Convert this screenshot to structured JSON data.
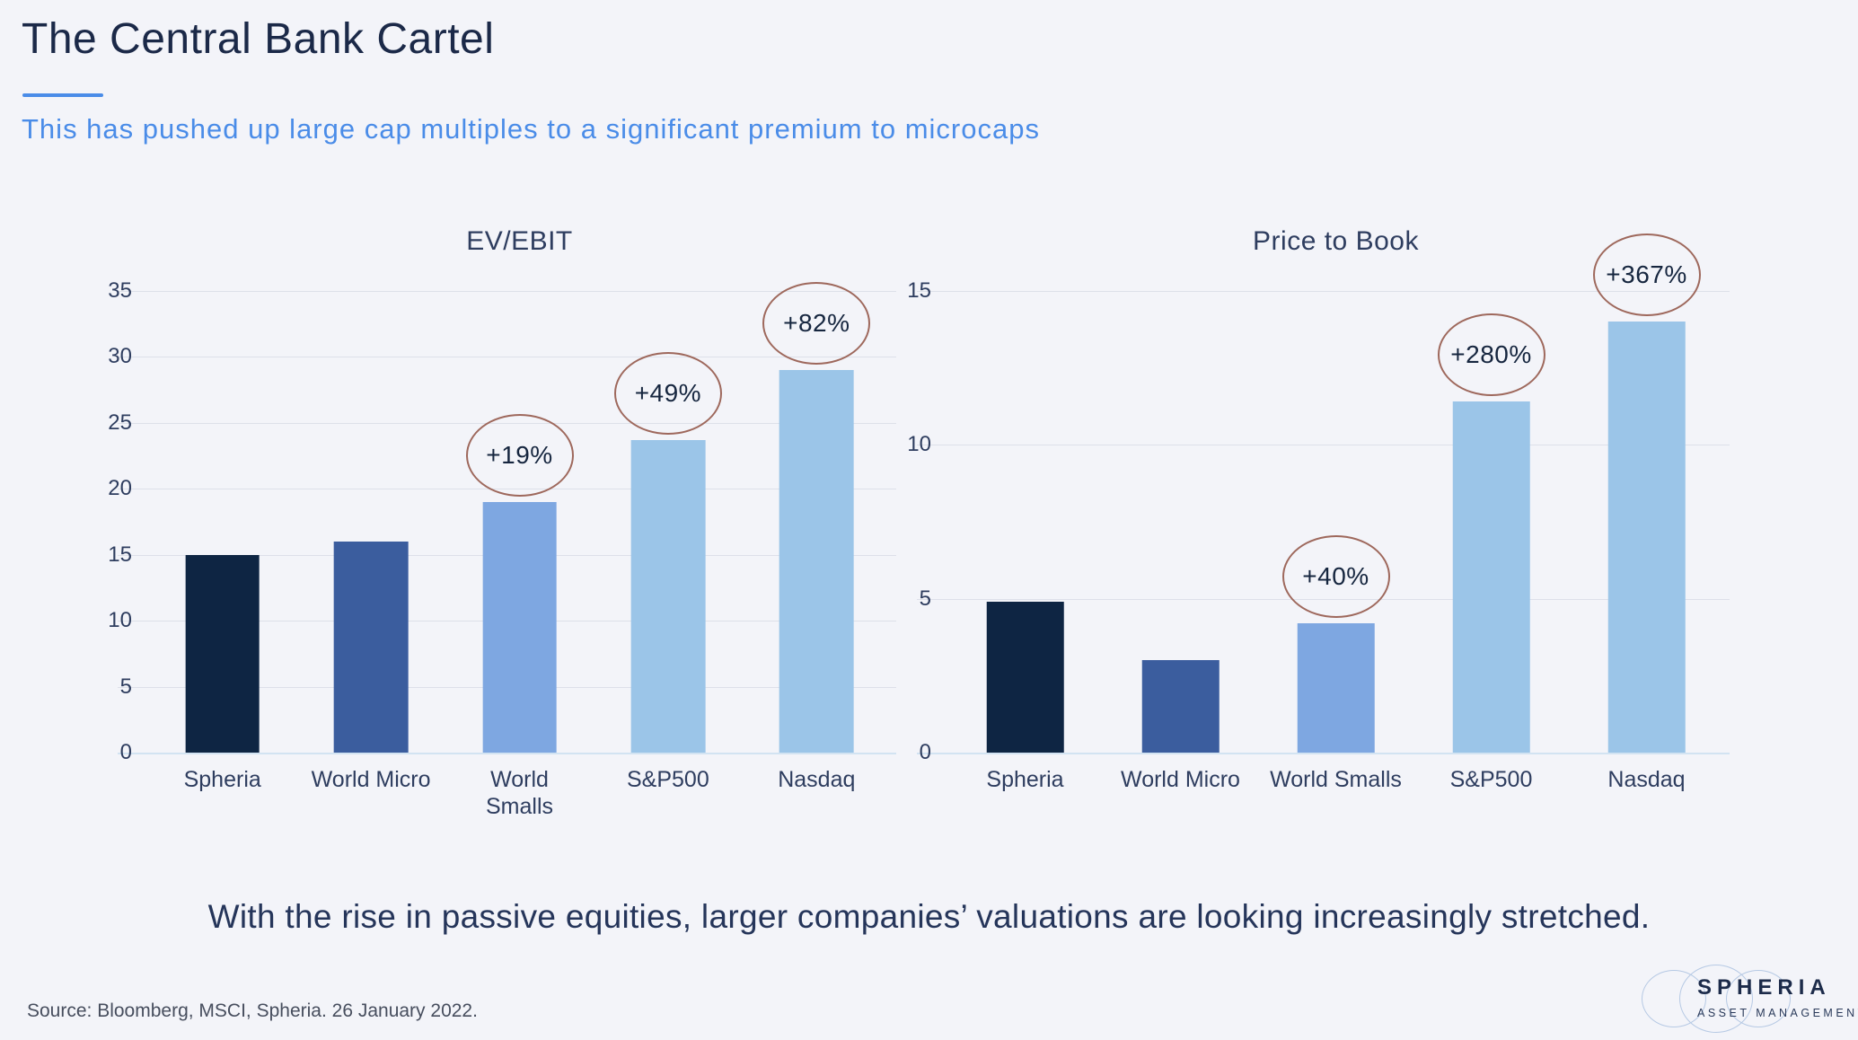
{
  "page": {
    "title": "The Central Bank Cartel",
    "subtitle": "This has pushed up large cap multiples to a significant premium to microcaps",
    "statement": "With the rise in passive equities, larger companies’ valuations are looking increasingly stretched.",
    "source": "Source: Bloomberg, MSCI, Spheria. 26 January 2022."
  },
  "logo": {
    "name": "SPHERIA",
    "tagline": "ASSET MANAGEMENT"
  },
  "colors": {
    "background": "#f3f4f9",
    "title_text": "#1b2948",
    "accent_blue": "#4a8ce8",
    "axis_text": "#2e3d5f",
    "gridline": "#dde0e9",
    "baseline": "#d2e3f2",
    "annotation_ring": "#9e685c",
    "annotation_text": "#16263f",
    "bars": [
      "#0e2543",
      "#3b5d9e",
      "#7ea7e1",
      "#9bc5e8",
      "#9bc5e8"
    ]
  },
  "chart_data": [
    {
      "type": "bar",
      "title": "EV/EBIT",
      "categories": [
        "Spheria",
        "World Micro",
        "World\nSmalls",
        "S&P500",
        "Nasdaq"
      ],
      "values": [
        15,
        16,
        19,
        23.7,
        29
      ],
      "ylim": [
        0,
        35
      ],
      "yticks": [
        0,
        5,
        10,
        15,
        20,
        25,
        30,
        35
      ],
      "grid": true,
      "legend": "none",
      "annotations": [
        {
          "category_index": 2,
          "label": "+19%"
        },
        {
          "category_index": 3,
          "label": "+49%"
        },
        {
          "category_index": 4,
          "label": "+82%"
        }
      ]
    },
    {
      "type": "bar",
      "title": "Price to Book",
      "categories": [
        "Spheria",
        "World Micro",
        "World Smalls",
        "S&P500",
        "Nasdaq"
      ],
      "values": [
        4.9,
        3,
        4.2,
        11.4,
        14
      ],
      "ylim": [
        0,
        15
      ],
      "yticks": [
        0,
        5,
        10,
        15
      ],
      "grid": true,
      "legend": "none",
      "annotations": [
        {
          "category_index": 2,
          "label": "+40%"
        },
        {
          "category_index": 3,
          "label": "+280%"
        },
        {
          "category_index": 4,
          "label": "+367%"
        }
      ]
    }
  ]
}
